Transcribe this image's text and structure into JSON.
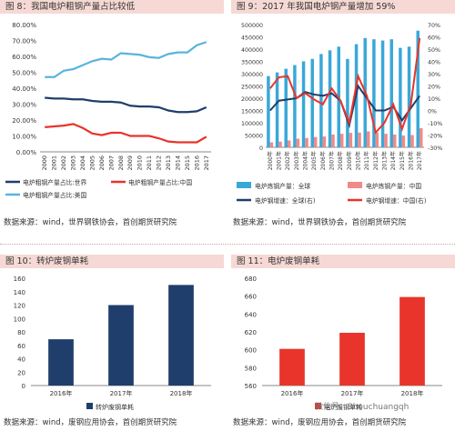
{
  "panels": {
    "p8": {
      "title": "图 8：我国电炉粗钢产量占比较低",
      "source": "数据来源：wind，世界钢铁协会，首创期货研究院"
    },
    "p9": {
      "title": "图 9：2017 年我国电炉钢产量增加 59%",
      "source": "数据来源：wind，世界钢铁协会，首创期货研究院"
    },
    "p10": {
      "title": "图 10：转炉废钢单耗",
      "source": "数据来源：wind，废钢应用协会，首创期货研究院"
    },
    "p11": {
      "title": "图 11：电炉废钢单耗",
      "source": "数据来源：wind，废钢应用协会，首创期货研究院"
    }
  },
  "watermark": "微信号：Shouchuangqh",
  "chart_data": [
    {
      "id": "fig8",
      "type": "line",
      "x": [
        "2000",
        "2001",
        "2002",
        "2003",
        "2004",
        "2005",
        "2006",
        "2007",
        "2008",
        "2009",
        "2010",
        "2011",
        "2012",
        "2013",
        "2014",
        "2015",
        "2016",
        "2017"
      ],
      "ylim": [
        0,
        80
      ],
      "yticks": [
        "0.00%",
        "10.00%",
        "20.00%",
        "30.00%",
        "40.00%",
        "50.00%",
        "60.00%",
        "70.00%",
        "80.00%"
      ],
      "series": [
        {
          "name": "电炉粗钢产量占比:世界",
          "color": "#1f3e6b",
          "values": [
            34,
            33.5,
            33.5,
            33,
            33,
            32,
            31.5,
            31.5,
            31,
            29,
            28.5,
            28.5,
            28,
            26,
            25,
            25,
            25.5,
            28
          ]
        },
        {
          "name": "电炉粗钢产量占比:中国",
          "color": "#e8342a",
          "values": [
            15.5,
            16,
            16.5,
            17.5,
            15,
            11.5,
            10.5,
            12,
            12,
            10,
            10,
            10,
            8.5,
            6.5,
            6,
            6,
            6,
            9.5
          ]
        },
        {
          "name": "电炉粗钢产量占比:美国",
          "color": "#5ab4dc",
          "values": [
            47,
            47,
            51,
            52,
            54.5,
            57,
            58.5,
            58,
            62,
            61.5,
            61,
            59.5,
            59,
            61.5,
            62.5,
            62.5,
            67,
            69
          ]
        }
      ]
    },
    {
      "id": "fig9",
      "type": "bar",
      "categories": [
        "2000年",
        "2001年",
        "2002年",
        "2003年",
        "2004年",
        "2005年",
        "2006年",
        "2007年",
        "2008年",
        "2009年",
        "2010年",
        "2011年",
        "2012年",
        "2013年",
        "2014年",
        "2015年",
        "2016年",
        "2017年"
      ],
      "ylim_left": [
        0,
        500000
      ],
      "yticks_left": [
        "0",
        "50000",
        "100000",
        "150000",
        "200000",
        "250000",
        "300000",
        "350000",
        "400000",
        "450000",
        "500000"
      ],
      "ylim_right": [
        -30,
        70
      ],
      "yticks_right": [
        "-30%",
        "-20%",
        "-10%",
        "0%",
        "10%",
        "20%",
        "30%",
        "40%",
        "50%",
        "60%",
        "70%"
      ],
      "series": [
        {
          "name": "电炉炼钢产量：全球",
          "color": "#39a8d8",
          "axis": "left",
          "values": [
            290000,
            305000,
            320000,
            335000,
            350000,
            360000,
            380000,
            395000,
            410000,
            360000,
            420000,
            445000,
            440000,
            435000,
            440000,
            405000,
            410000,
            475000
          ]
        },
        {
          "name": "电炉炼钢产量：中国",
          "color": "#f08a88",
          "axis": "left",
          "values": [
            20000,
            23000,
            28000,
            35000,
            38000,
            42000,
            44000,
            52000,
            55000,
            59000,
            60000,
            65000,
            60000,
            55000,
            52000,
            48000,
            50000,
            78000
          ]
        },
        {
          "name": "电炉钢增速：全球(右)",
          "color": "#1f3e6b",
          "axis": "right",
          "kind": "line",
          "values": [
            0,
            8,
            9,
            10,
            15,
            13,
            12,
            14,
            8,
            -12,
            20,
            10,
            0,
            0,
            3,
            -8,
            2,
            12
          ]
        },
        {
          "name": "电炉钢增速：中国(右)",
          "color": "#e8342a",
          "axis": "right",
          "kind": "line",
          "values": [
            18,
            27,
            28,
            10,
            14,
            9,
            5,
            18,
            8,
            -10,
            28,
            12,
            -18,
            -10,
            5,
            -15,
            5,
            59
          ]
        }
      ]
    },
    {
      "id": "fig10",
      "type": "bar",
      "categories": [
        "2016年",
        "2017年",
        "2018年"
      ],
      "ylim": [
        0,
        160
      ],
      "yticks": [
        "0",
        "20",
        "40",
        "60",
        "80",
        "100",
        "120",
        "140",
        "160"
      ],
      "series": [
        {
          "name": "转炉废钢单耗",
          "color": "#1f3e6b",
          "values": [
            69,
            120,
            150
          ]
        }
      ]
    },
    {
      "id": "fig11",
      "type": "bar",
      "categories": [
        "2016年",
        "2017年",
        "2018年"
      ],
      "ylim": [
        560,
        680
      ],
      "yticks": [
        "560",
        "580",
        "600",
        "620",
        "640",
        "660",
        "680"
      ],
      "series": [
        {
          "name": "电炉废钢单耗",
          "color": "#e8342a",
          "values": [
            601,
            619,
            659
          ]
        }
      ]
    }
  ]
}
